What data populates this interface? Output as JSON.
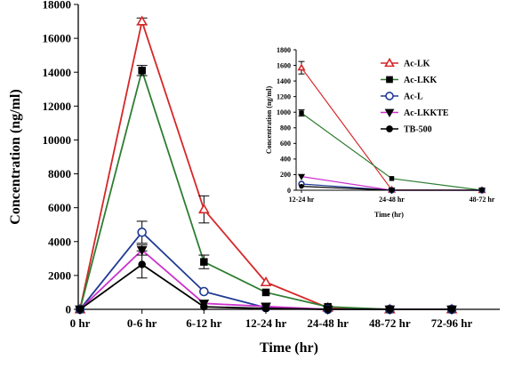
{
  "chart_data": [
    {
      "type": "line",
      "title": "",
      "xlabel": "Time (hr)",
      "ylabel": "Concentration (ng/ml)",
      "categories": [
        "0 hr",
        "0-6 hr",
        "6-12 hr",
        "12-24 hr",
        "24-48 hr",
        "48-72 hr",
        "72-96 hr"
      ],
      "ylim": [
        0,
        18000
      ],
      "yticks": [
        "0",
        "2000",
        "4000",
        "6000",
        "8000",
        "10000",
        "12000",
        "14000",
        "16000",
        "18000"
      ],
      "series": [
        {
          "name": "Ac-LK",
          "color": "#d62728",
          "marker": "triangle-open",
          "values": [
            0,
            17000,
            5900,
            1600,
            100,
            0,
            0
          ],
          "errors": [
            0,
            200,
            800,
            0,
            0,
            0,
            0
          ]
        },
        {
          "name": "Ac-LKK",
          "color": "#2e7d32",
          "marker": "square-filled",
          "values": [
            0,
            14100,
            2800,
            1000,
            150,
            0,
            0
          ],
          "errors": [
            0,
            300,
            400,
            0,
            0,
            0,
            0
          ]
        },
        {
          "name": "Ac-L",
          "color": "#1f3a93",
          "marker": "circle-open",
          "values": [
            0,
            4550,
            1050,
            100,
            0,
            0,
            0
          ],
          "errors": [
            0,
            650,
            0,
            0,
            0,
            0,
            0
          ]
        },
        {
          "name": "Ac-LKKTE",
          "color": "#cc33cc",
          "marker": "triangle-down-filled",
          "values": [
            0,
            3500,
            350,
            170,
            0,
            0,
            0
          ],
          "errors": [
            0,
            300,
            0,
            0,
            0,
            0,
            0
          ]
        },
        {
          "name": "TB-500",
          "color": "#000000",
          "marker": "circle-filled",
          "values": [
            0,
            2650,
            150,
            50,
            0,
            0,
            0
          ],
          "errors": [
            0,
            800,
            0,
            0,
            0,
            0,
            0
          ]
        }
      ]
    },
    {
      "type": "line",
      "title": "",
      "xlabel": "Time (hr)",
      "ylabel": "Concentration (ng/ml)",
      "categories": [
        "12-24 hr",
        "24-48 hr",
        "48-72 hr"
      ],
      "ylim": [
        0,
        1800
      ],
      "yticks": [
        "0",
        "200",
        "400",
        "600",
        "800",
        "1000",
        "1200",
        "1400",
        "1600",
        "1800"
      ],
      "legend_position": "top-right",
      "series": [
        {
          "name": "Ac-LK",
          "color": "#d62728",
          "marker": "triangle-open",
          "values": [
            1570,
            5,
            0
          ],
          "errors": [
            80,
            0,
            0
          ]
        },
        {
          "name": "Ac-LKK",
          "color": "#2e7d32",
          "marker": "square-filled",
          "values": [
            990,
            150,
            0
          ],
          "errors": [
            40,
            0,
            0
          ]
        },
        {
          "name": "Ac-L",
          "color": "#1f3a93",
          "marker": "circle-open",
          "values": [
            80,
            0,
            0
          ],
          "errors": [
            0,
            0,
            0
          ]
        },
        {
          "name": "Ac-LKKTE",
          "color": "#cc33cc",
          "marker": "triangle-down-filled",
          "values": [
            175,
            0,
            0
          ],
          "errors": [
            0,
            0,
            0
          ]
        },
        {
          "name": "TB-500",
          "color": "#000000",
          "marker": "circle-filled",
          "values": [
            50,
            0,
            0
          ],
          "errors": [
            0,
            0,
            0
          ]
        }
      ]
    }
  ]
}
